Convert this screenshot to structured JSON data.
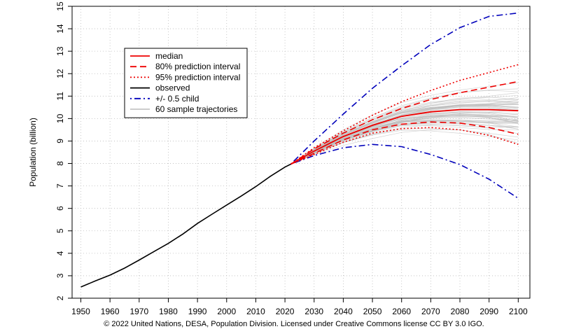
{
  "caption": "© 2022 United Nations, DESA, Population Division. Licensed under Creative Commons license CC BY 3.0 IGO.",
  "chart_data": {
    "type": "line",
    "title": "",
    "xlabel": "",
    "ylabel": "Population (billion)",
    "xlim": [
      1947,
      2104
    ],
    "ylim": [
      2,
      15
    ],
    "x_ticks": [
      1950,
      1960,
      1970,
      1980,
      1990,
      2000,
      2010,
      2020,
      2030,
      2040,
      2050,
      2060,
      2070,
      2080,
      2090,
      2100
    ],
    "y_ticks": [
      2,
      3,
      4,
      5,
      6,
      7,
      8,
      9,
      10,
      11,
      12,
      13,
      14,
      15
    ],
    "grid": true,
    "grid_style": "dotted",
    "legend_position": "top-left",
    "legend": [
      {
        "key": "median",
        "label": "median",
        "color": "#ee0000",
        "style": "solid"
      },
      {
        "key": "pi80",
        "label": "80% prediction interval",
        "color": "#ee0000",
        "style": "dashed"
      },
      {
        "key": "pi95",
        "label": "95% prediction interval",
        "color": "#ee0000",
        "style": "dotted"
      },
      {
        "key": "observed",
        "label": "observed",
        "color": "#000000",
        "style": "solid"
      },
      {
        "key": "child",
        "label": "+/- 0.5 child",
        "color": "#0000bb",
        "style": "dotdash"
      },
      {
        "key": "samples",
        "label": "60 sample trajectories",
        "color": "#bbbbbb",
        "style": "solid"
      }
    ],
    "series": [
      {
        "name": "observed",
        "color": "#000000",
        "style": "solid",
        "x": [
          1950,
          1955,
          1960,
          1965,
          1970,
          1975,
          1980,
          1985,
          1990,
          1995,
          2000,
          2005,
          2010,
          2015,
          2020,
          2022
        ],
        "y": [
          2.5,
          2.77,
          3.03,
          3.34,
          3.7,
          4.07,
          4.44,
          4.86,
          5.33,
          5.74,
          6.15,
          6.55,
          6.97,
          7.43,
          7.84,
          7.97
        ]
      },
      {
        "name": "median",
        "color": "#ee0000",
        "style": "solid",
        "x": [
          2022,
          2030,
          2040,
          2050,
          2060,
          2070,
          2080,
          2090,
          2100
        ],
        "y": [
          7.97,
          8.55,
          9.2,
          9.7,
          10.1,
          10.3,
          10.4,
          10.4,
          10.35
        ]
      },
      {
        "name": "80% prediction interval (upper)",
        "color": "#ee0000",
        "style": "dashed",
        "x": [
          2022,
          2030,
          2040,
          2050,
          2060,
          2070,
          2080,
          2090,
          2100
        ],
        "y": [
          7.97,
          8.65,
          9.35,
          9.95,
          10.45,
          10.85,
          11.15,
          11.4,
          11.65
        ]
      },
      {
        "name": "80% prediction interval (lower)",
        "color": "#ee0000",
        "style": "dashed",
        "x": [
          2022,
          2030,
          2040,
          2050,
          2060,
          2070,
          2080,
          2090,
          2100
        ],
        "y": [
          7.97,
          8.45,
          9.05,
          9.5,
          9.75,
          9.85,
          9.8,
          9.6,
          9.3
        ]
      },
      {
        "name": "95% prediction interval (upper)",
        "color": "#ee0000",
        "style": "dotted",
        "x": [
          2022,
          2030,
          2040,
          2050,
          2060,
          2070,
          2080,
          2090,
          2100
        ],
        "y": [
          7.97,
          8.7,
          9.45,
          10.15,
          10.75,
          11.25,
          11.7,
          12.05,
          12.4
        ]
      },
      {
        "name": "95% prediction interval (lower)",
        "color": "#ee0000",
        "style": "dotted",
        "x": [
          2022,
          2030,
          2040,
          2050,
          2060,
          2070,
          2080,
          2090,
          2100
        ],
        "y": [
          7.97,
          8.4,
          8.95,
          9.35,
          9.55,
          9.6,
          9.5,
          9.25,
          8.85
        ]
      },
      {
        "name": "+/- 0.5 child (upper)",
        "color": "#0000bb",
        "style": "dotdash",
        "x": [
          2022,
          2030,
          2040,
          2050,
          2060,
          2070,
          2080,
          2090,
          2100
        ],
        "y": [
          7.97,
          9.0,
          10.2,
          11.35,
          12.35,
          13.3,
          14.05,
          14.55,
          14.7
        ]
      },
      {
        "name": "+/- 0.5 child (lower)",
        "color": "#0000bb",
        "style": "dotdash",
        "x": [
          2022,
          2030,
          2040,
          2050,
          2060,
          2070,
          2080,
          2090,
          2100
        ],
        "y": [
          7.97,
          8.35,
          8.7,
          8.85,
          8.75,
          8.4,
          7.95,
          7.3,
          6.45
        ]
      }
    ],
    "sample_trajectories": {
      "count": 60,
      "color": "#bbbbbb",
      "x": [
        2022,
        2030,
        2040,
        2050,
        2060,
        2070,
        2080,
        2090,
        2100
      ],
      "y_range_2100": [
        9.3,
        12.1
      ]
    }
  }
}
